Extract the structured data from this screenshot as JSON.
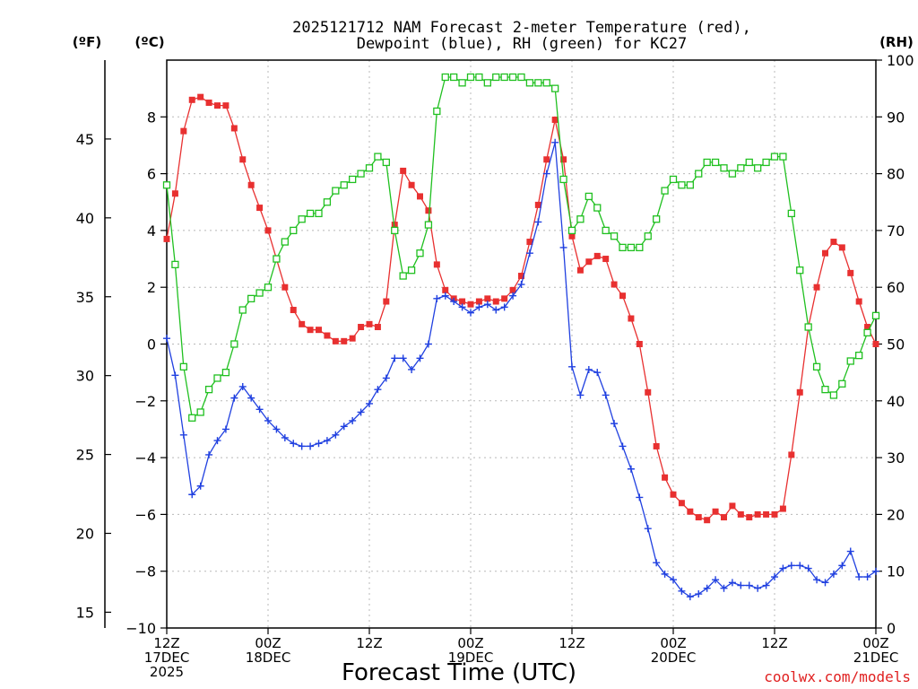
{
  "chart_data": {
    "type": "line",
    "title_line1": "2025121712 NAM Forecast 2-meter Temperature (red),",
    "title_line2": "Dewpoint (blue), RH (green) for KC27",
    "xlabel": "Forecast Time (UTC)",
    "left_outer_unit": "(ºF)",
    "left_inner_unit": "(ºC)",
    "right_unit": "(RH)",
    "credit": "coolwx.com/models",
    "x_hours_range": [
      0,
      84
    ],
    "ylim_c": [
      -10,
      10
    ],
    "ylim_f": [
      14,
      50
    ],
    "ylim_rh": [
      0,
      100
    ],
    "yticks_c": [
      -10,
      -8,
      -6,
      -4,
      -2,
      0,
      2,
      4,
      6,
      8
    ],
    "yticks_f": [
      15,
      20,
      25,
      30,
      35,
      40,
      45
    ],
    "yticks_rh": [
      0,
      10,
      20,
      30,
      40,
      50,
      60,
      70,
      80,
      90,
      100
    ],
    "xticks": [
      {
        "hour": 0,
        "lines": [
          "12Z",
          "17DEC",
          "2025"
        ]
      },
      {
        "hour": 12,
        "lines": [
          "00Z",
          "18DEC"
        ]
      },
      {
        "hour": 24,
        "lines": [
          "12Z"
        ]
      },
      {
        "hour": 36,
        "lines": [
          "00Z",
          "19DEC"
        ]
      },
      {
        "hour": 48,
        "lines": [
          "12Z"
        ]
      },
      {
        "hour": 60,
        "lines": [
          "00Z",
          "20DEC"
        ]
      },
      {
        "hour": 72,
        "lines": [
          "12Z"
        ]
      },
      {
        "hour": 84,
        "lines": [
          "00Z",
          "21DEC"
        ]
      }
    ],
    "grid": true,
    "series": [
      {
        "key": "temperature",
        "unit": "C",
        "color": "#e83030",
        "marker": "filled-square",
        "x": [
          0,
          1,
          2,
          3,
          4,
          5,
          6,
          7,
          8,
          9,
          10,
          11,
          12,
          13,
          14,
          15,
          16,
          17,
          18,
          19,
          20,
          21,
          22,
          23,
          24,
          25,
          26,
          27,
          28,
          29,
          30,
          31,
          32,
          33,
          34,
          35,
          36,
          37,
          38,
          39,
          40,
          41,
          42,
          43,
          44,
          45,
          46,
          47,
          48,
          49,
          50,
          51,
          52,
          53,
          54,
          55,
          56,
          57,
          58,
          59,
          60,
          61,
          62,
          63,
          64,
          65,
          66,
          67,
          68,
          69,
          70,
          71,
          72,
          73,
          74,
          75,
          76,
          77,
          78,
          79,
          80,
          81,
          82,
          83,
          84
        ],
        "values": [
          3.7,
          5.3,
          7.5,
          8.6,
          8.7,
          8.5,
          8.4,
          8.4,
          7.6,
          6.5,
          5.6,
          4.8,
          4.0,
          3.0,
          2.0,
          1.2,
          0.7,
          0.5,
          0.5,
          0.3,
          0.1,
          0.1,
          0.2,
          0.6,
          0.7,
          0.6,
          1.5,
          4.2,
          6.1,
          5.6,
          5.2,
          4.7,
          2.8,
          1.9,
          1.6,
          1.5,
          1.4,
          1.5,
          1.6,
          1.5,
          1.6,
          1.9,
          2.4,
          3.6,
          4.9,
          6.5,
          7.9,
          6.5,
          3.8,
          2.6,
          2.9,
          3.1,
          3.0,
          2.1,
          1.7,
          0.9,
          0.0,
          -1.7,
          -3.6,
          -4.7,
          -5.3,
          -5.6,
          -5.9,
          -6.1,
          -6.2,
          -5.9,
          -6.1,
          -5.7,
          -6.0,
          -6.1,
          -6.0,
          -6.0,
          -6.0,
          -5.8,
          -3.9,
          -1.7,
          0.6,
          2.0,
          3.2,
          3.6,
          3.4,
          2.5,
          1.5,
          0.6,
          0.0
        ]
      },
      {
        "key": "dewpoint",
        "unit": "C",
        "color": "#2040e0",
        "marker": "plus",
        "x": [
          0,
          1,
          2,
          3,
          4,
          5,
          6,
          7,
          8,
          9,
          10,
          11,
          12,
          13,
          14,
          15,
          16,
          17,
          18,
          19,
          20,
          21,
          22,
          23,
          24,
          25,
          26,
          27,
          28,
          29,
          30,
          31,
          32,
          33,
          34,
          35,
          36,
          37,
          38,
          39,
          40,
          41,
          42,
          43,
          44,
          45,
          46,
          47,
          48,
          49,
          50,
          51,
          52,
          53,
          54,
          55,
          56,
          57,
          58,
          59,
          60,
          61,
          62,
          63,
          64,
          65,
          66,
          67,
          68,
          69,
          70,
          71,
          72,
          73,
          74,
          75,
          76,
          77,
          78,
          79,
          80,
          81,
          82,
          83,
          84
        ],
        "values": [
          0.2,
          -1.1,
          -3.2,
          -5.3,
          -5.0,
          -3.9,
          -3.4,
          -3.0,
          -1.9,
          -1.5,
          -1.9,
          -2.3,
          -2.7,
          -3.0,
          -3.3,
          -3.5,
          -3.6,
          -3.6,
          -3.5,
          -3.4,
          -3.2,
          -2.9,
          -2.7,
          -2.4,
          -2.1,
          -1.6,
          -1.2,
          -0.5,
          -0.5,
          -0.9,
          -0.5,
          0.0,
          1.6,
          1.7,
          1.5,
          1.3,
          1.1,
          1.3,
          1.4,
          1.2,
          1.3,
          1.7,
          2.1,
          3.2,
          4.3,
          6.0,
          7.1,
          3.4,
          -0.8,
          -1.8,
          -0.9,
          -1.0,
          -1.8,
          -2.8,
          -3.6,
          -4.4,
          -5.4,
          -6.5,
          -7.7,
          -8.1,
          -8.3,
          -8.7,
          -8.9,
          -8.8,
          -8.6,
          -8.3,
          -8.6,
          -8.4,
          -8.5,
          -8.5,
          -8.6,
          -8.5,
          -8.2,
          -7.9,
          -7.8,
          -7.8,
          -7.9,
          -8.3,
          -8.4,
          -8.1,
          -7.8,
          -7.3,
          -8.2,
          -8.2,
          -8.0
        ]
      },
      {
        "key": "rh",
        "unit": "%",
        "color": "#20c020",
        "marker": "open-square",
        "x": [
          0,
          1,
          2,
          3,
          4,
          5,
          6,
          7,
          8,
          9,
          10,
          11,
          12,
          13,
          14,
          15,
          16,
          17,
          18,
          19,
          20,
          21,
          22,
          23,
          24,
          25,
          26,
          27,
          28,
          29,
          30,
          31,
          32,
          33,
          34,
          35,
          36,
          37,
          38,
          39,
          40,
          41,
          42,
          43,
          44,
          45,
          46,
          47,
          48,
          49,
          50,
          51,
          52,
          53,
          54,
          55,
          56,
          57,
          58,
          59,
          60,
          61,
          62,
          63,
          64,
          65,
          66,
          67,
          68,
          69,
          70,
          71,
          72,
          73,
          74,
          75,
          76,
          77,
          78,
          79,
          80,
          81,
          82,
          83,
          84
        ],
        "values": [
          78,
          64,
          46,
          37,
          38,
          42,
          44,
          45,
          50,
          56,
          58,
          59,
          60,
          65,
          68,
          70,
          72,
          73,
          73,
          75,
          77,
          78,
          79,
          80,
          81,
          83,
          82,
          70,
          62,
          63,
          66,
          71,
          91,
          97,
          97,
          96,
          97,
          97,
          96,
          97,
          97,
          97,
          97,
          96,
          96,
          96,
          95,
          79,
          70,
          72,
          76,
          74,
          70,
          69,
          67,
          67,
          67,
          69,
          72,
          77,
          79,
          78,
          78,
          80,
          82,
          82,
          81,
          80,
          81,
          82,
          81,
          82,
          83,
          83,
          73,
          63,
          53,
          46,
          42,
          41,
          43,
          47,
          48,
          52,
          55
        ]
      }
    ]
  }
}
